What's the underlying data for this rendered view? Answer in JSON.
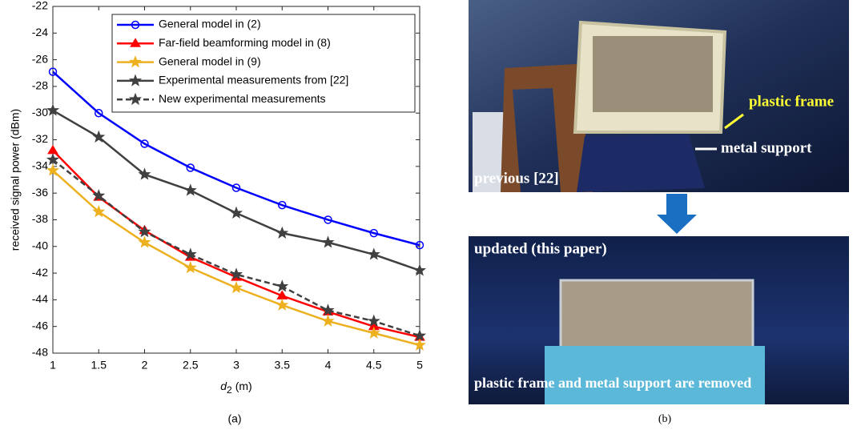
{
  "chart_data": {
    "type": "line",
    "x_label": [
      "d",
      "2",
      "(m)"
    ],
    "y_label": "received signal power (dBm)",
    "x": [
      1,
      1.5,
      2,
      2.5,
      3,
      3.5,
      4,
      4.5,
      5
    ],
    "xlim": [
      1,
      5
    ],
    "xticks": [
      1,
      1.5,
      2,
      2.5,
      3,
      3.5,
      4,
      4.5,
      5
    ],
    "ylim": [
      -48,
      -22
    ],
    "yticks": [
      -48,
      -46,
      -44,
      -42,
      -40,
      -38,
      -36,
      -34,
      -32,
      -30,
      -28,
      -26,
      -24,
      -22
    ],
    "series": [
      {
        "name": "General model in (2)",
        "color": "#0000ff",
        "marker": "circle",
        "dash": false,
        "values": [
          -26.9,
          -30.0,
          -32.3,
          -34.1,
          -35.6,
          -36.9,
          -38.0,
          -39.0,
          -39.9
        ]
      },
      {
        "name": "Far-field beamforming model in (8)",
        "color": "#ff0000",
        "marker": "triangle",
        "dash": false,
        "values": [
          -32.8,
          -36.3,
          -38.8,
          -40.8,
          -42.3,
          -43.7,
          -44.9,
          -46.0,
          -46.8
        ]
      },
      {
        "name": "General model in (9)",
        "color": "#edb120",
        "marker": "star",
        "dash": false,
        "values": [
          -34.3,
          -37.4,
          -39.7,
          -41.6,
          -43.1,
          -44.4,
          -45.6,
          -46.5,
          -47.4
        ]
      },
      {
        "name": "Experimental measurements from [22]",
        "color": "#404040",
        "marker": "star",
        "dash": false,
        "values": [
          -29.8,
          -31.8,
          -34.6,
          -35.8,
          -37.5,
          -39.0,
          -39.7,
          -40.6,
          -41.8
        ]
      },
      {
        "name": "New experimental measurements",
        "color": "#404040",
        "marker": "star",
        "dash": true,
        "values": [
          -33.5,
          -36.2,
          -38.9,
          -40.6,
          -42.1,
          -43.0,
          -44.8,
          -45.6,
          -46.7
        ]
      }
    ],
    "legend": "upper right"
  },
  "figure": {
    "label_a": "(a)",
    "label_b": "(b)",
    "photo_top": {
      "plastic_frame": "plastic frame",
      "metal_support": "metal support",
      "caption": "previous [22]"
    },
    "photo_bottom": {
      "caption": "updated (this paper)",
      "note": "plastic frame and metal support are removed"
    }
  }
}
